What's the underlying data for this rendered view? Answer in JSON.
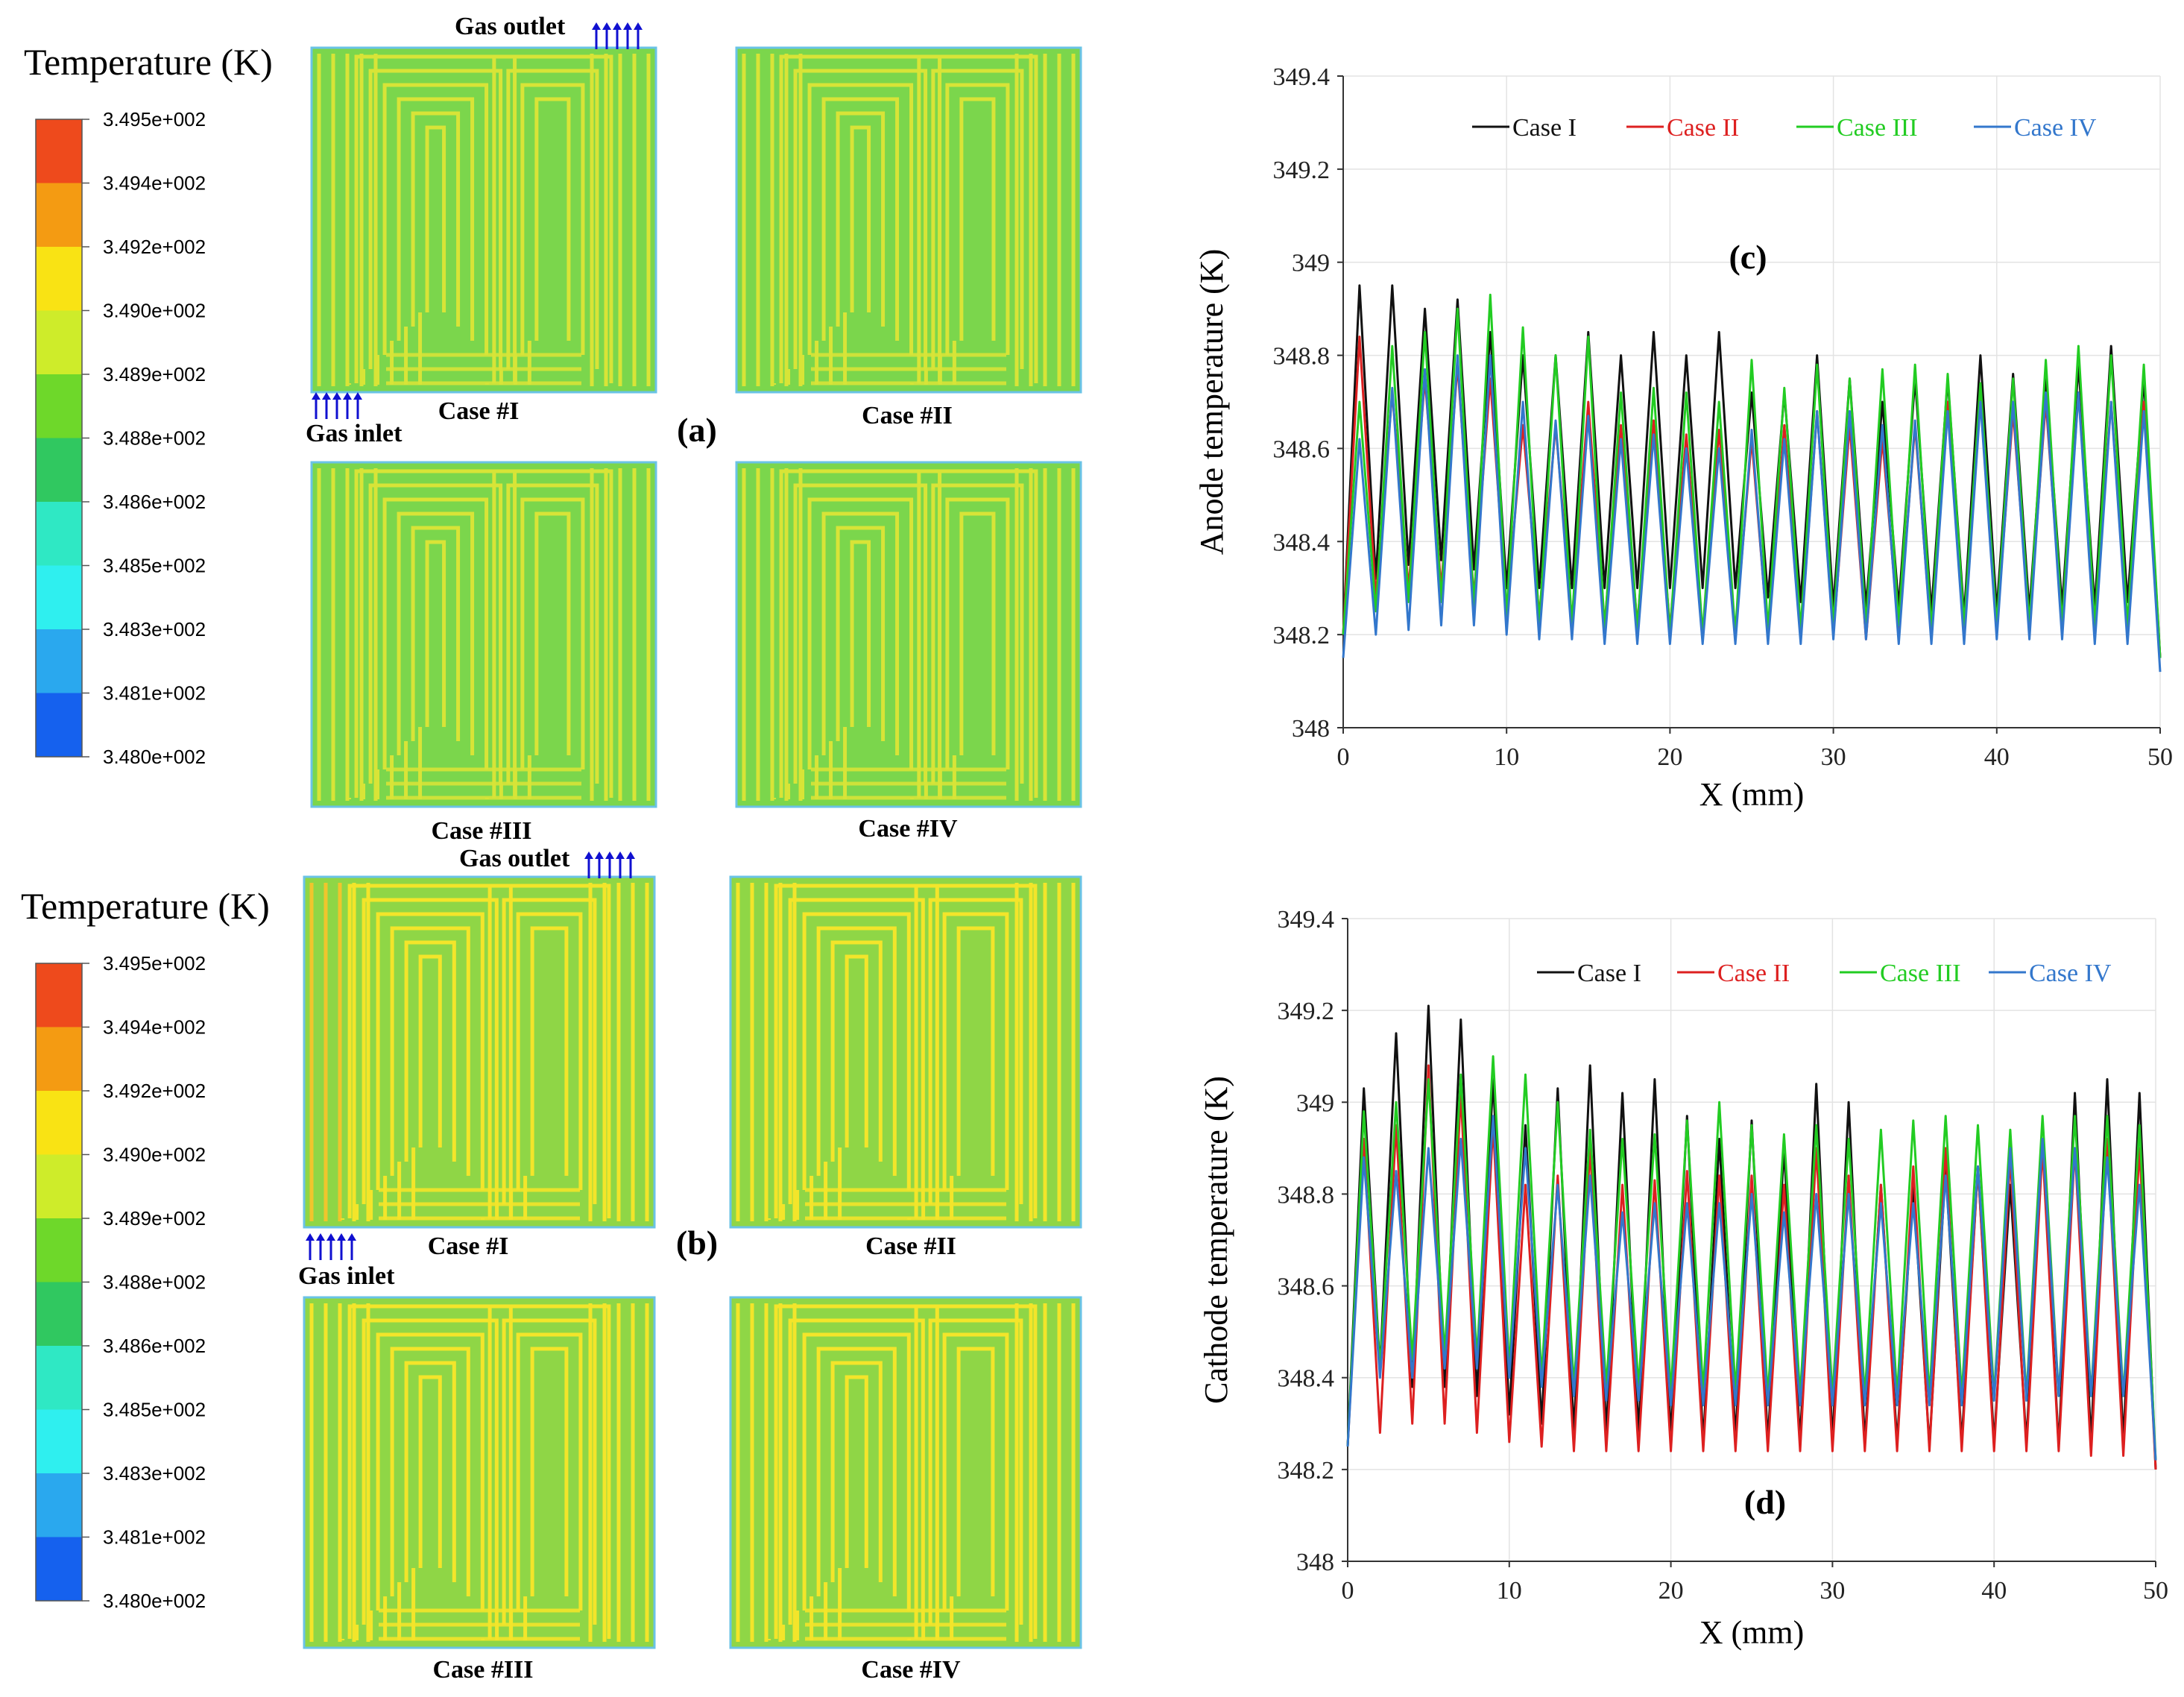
{
  "colorbars": [
    {
      "title": "Temperature (K)",
      "colors": [
        "#ee4a1c",
        "#f49b12",
        "#f9e314",
        "#ceec2a",
        "#6ed82a",
        "#30c860",
        "#2fe8c4",
        "#2fefef",
        "#2aa8ee",
        "#1561ee"
      ],
      "ticks": [
        "3.495e+002",
        "3.494e+002",
        "3.492e+002",
        "3.490e+002",
        "3.489e+002",
        "3.488e+002",
        "3.486e+002",
        "3.485e+002",
        "3.483e+002",
        "3.481e+002",
        "3.480e+002"
      ]
    },
    {
      "title": "Temperature (K)",
      "colors": [
        "#ee4a1c",
        "#f49b12",
        "#f9e314",
        "#ceec2a",
        "#6ed82a",
        "#30c860",
        "#2fe8c4",
        "#2fefef",
        "#2aa8ee",
        "#1561ee"
      ],
      "ticks": [
        "3.495e+002",
        "3.494e+002",
        "3.492e+002",
        "3.490e+002",
        "3.489e+002",
        "3.488e+002",
        "3.486e+002",
        "3.485e+002",
        "3.483e+002",
        "3.481e+002",
        "3.480e+002"
      ]
    }
  ],
  "contour_panels": {
    "a": {
      "label": "(a)",
      "gas_outlet": "Gas outlet",
      "gas_inlet": "Gas inlet",
      "cases": [
        "Case #I",
        "Case #II",
        "Case #III",
        "Case #IV"
      ],
      "background_color": "#7bd64c",
      "channel_color": "#d8e437",
      "inlet_color": "#e2e83a"
    },
    "b": {
      "label": "(b)",
      "gas_outlet": "Gas outlet",
      "gas_inlet": "Gas inlet",
      "cases": [
        "Case #I",
        "Case #II",
        "Case #III",
        "Case #IV"
      ],
      "background_color": "#8fd646",
      "channel_color": "#f3e52a",
      "inlet_color": "#f0c52c"
    },
    "arrow_color": "#1010d0"
  },
  "chart_data": [
    {
      "id": "c",
      "type": "line",
      "label": "(c)",
      "xlabel": "X (mm)",
      "ylabel": "Anode temperature (K)",
      "xlim": [
        0,
        50
      ],
      "ylim": [
        348,
        349.4
      ],
      "xticks": [
        0,
        10,
        20,
        30,
        40,
        50
      ],
      "yticks": [
        348,
        348.2,
        348.4,
        348.6,
        348.8,
        349,
        349.2,
        349.4
      ],
      "legend_position": "top",
      "series": [
        {
          "name": "Case I",
          "color": "#111111",
          "x": [
            0,
            1,
            2,
            3,
            4,
            5,
            6,
            7,
            8,
            9,
            10,
            11,
            12,
            13,
            14,
            15,
            16,
            17,
            18,
            19,
            20,
            21,
            22,
            23,
            24,
            25,
            26,
            27,
            28,
            29,
            30,
            31,
            32,
            33,
            34,
            35,
            36,
            37,
            38,
            39,
            40,
            41,
            42,
            43,
            44,
            45,
            46,
            47,
            48,
            49,
            50
          ],
          "y": [
            348.2,
            348.95,
            348.32,
            348.95,
            348.35,
            348.9,
            348.36,
            348.92,
            348.34,
            348.85,
            348.3,
            348.8,
            348.3,
            348.8,
            348.3,
            348.85,
            348.3,
            348.8,
            348.3,
            348.85,
            348.3,
            348.8,
            348.3,
            348.85,
            348.3,
            348.72,
            348.28,
            348.72,
            348.27,
            348.8,
            348.26,
            348.75,
            348.26,
            348.7,
            348.26,
            348.75,
            348.25,
            348.75,
            348.24,
            348.8,
            348.25,
            348.76,
            348.25,
            348.75,
            348.26,
            348.78,
            348.26,
            348.82,
            348.27,
            348.75,
            348.15
          ]
        },
        {
          "name": "Case II",
          "color": "#dd2020",
          "x": [
            0,
            1,
            2,
            3,
            4,
            5,
            6,
            7,
            8,
            9,
            10,
            11,
            12,
            13,
            14,
            15,
            16,
            17,
            18,
            19,
            20,
            21,
            22,
            23,
            24,
            25,
            26,
            27,
            28,
            29,
            30,
            31,
            32,
            33,
            34,
            35,
            36,
            37,
            38,
            39,
            40,
            41,
            42,
            43,
            44,
            45,
            46,
            47,
            48,
            49,
            50
          ],
          "y": [
            348.2,
            348.84,
            348.28,
            348.72,
            348.3,
            348.75,
            348.3,
            348.78,
            348.28,
            348.75,
            348.25,
            348.65,
            348.24,
            348.65,
            348.23,
            348.7,
            348.22,
            348.65,
            348.22,
            348.66,
            348.21,
            348.63,
            348.2,
            348.64,
            348.2,
            348.62,
            348.19,
            348.65,
            348.19,
            348.68,
            348.2,
            348.65,
            348.19,
            348.62,
            348.2,
            348.65,
            348.19,
            348.7,
            348.2,
            348.73,
            348.21,
            348.68,
            348.22,
            348.7,
            348.22,
            348.72,
            348.22,
            348.7,
            348.21,
            348.7,
            348.15
          ]
        },
        {
          "name": "Case III",
          "color": "#22cc22",
          "x": [
            0,
            1,
            2,
            3,
            4,
            5,
            6,
            7,
            8,
            9,
            10,
            11,
            12,
            13,
            14,
            15,
            16,
            17,
            18,
            19,
            20,
            21,
            22,
            23,
            24,
            25,
            26,
            27,
            28,
            29,
            30,
            31,
            32,
            33,
            34,
            35,
            36,
            37,
            38,
            39,
            40,
            41,
            42,
            43,
            44,
            45,
            46,
            47,
            48,
            49,
            50
          ],
          "y": [
            348.2,
            348.7,
            348.25,
            348.82,
            348.27,
            348.85,
            348.27,
            348.9,
            348.26,
            348.93,
            348.24,
            348.86,
            348.22,
            348.8,
            348.22,
            348.84,
            348.21,
            348.72,
            348.21,
            348.73,
            348.2,
            348.72,
            348.2,
            348.7,
            348.2,
            348.79,
            348.21,
            348.73,
            348.21,
            348.78,
            348.22,
            348.75,
            348.22,
            348.77,
            348.22,
            348.78,
            348.21,
            348.76,
            348.22,
            348.74,
            348.22,
            348.75,
            348.22,
            348.79,
            348.22,
            348.82,
            348.22,
            348.8,
            348.22,
            348.78,
            348.15
          ]
        },
        {
          "name": "Case IV",
          "color": "#3377cc",
          "x": [
            0,
            1,
            2,
            3,
            4,
            5,
            6,
            7,
            8,
            9,
            10,
            11,
            12,
            13,
            14,
            15,
            16,
            17,
            18,
            19,
            20,
            21,
            22,
            23,
            24,
            25,
            26,
            27,
            28,
            29,
            30,
            31,
            32,
            33,
            34,
            35,
            36,
            37,
            38,
            39,
            40,
            41,
            42,
            43,
            44,
            45,
            46,
            47,
            48,
            49,
            50
          ],
          "y": [
            348.15,
            348.62,
            348.2,
            348.73,
            348.21,
            348.77,
            348.22,
            348.8,
            348.22,
            348.8,
            348.2,
            348.7,
            348.19,
            348.66,
            348.19,
            348.67,
            348.18,
            348.62,
            348.18,
            348.63,
            348.18,
            348.6,
            348.18,
            348.6,
            348.18,
            348.64,
            348.18,
            348.62,
            348.18,
            348.68,
            348.19,
            348.68,
            348.19,
            348.65,
            348.18,
            348.66,
            348.18,
            348.68,
            348.18,
            348.7,
            348.19,
            348.7,
            348.19,
            348.72,
            348.19,
            348.72,
            348.18,
            348.7,
            348.18,
            348.68,
            348.12
          ]
        }
      ]
    },
    {
      "id": "d",
      "type": "line",
      "label": "(d)",
      "xlabel": "X (mm)",
      "ylabel": "Cathode temperature (K)",
      "xlim": [
        0,
        50
      ],
      "ylim": [
        348,
        349.4
      ],
      "xticks": [
        0,
        10,
        20,
        30,
        40,
        50
      ],
      "yticks": [
        348,
        348.2,
        348.4,
        348.6,
        348.8,
        349,
        349.2,
        349.4
      ],
      "legend_position": "top",
      "series": [
        {
          "name": "Case I",
          "color": "#111111",
          "x": [
            0,
            1,
            2,
            3,
            4,
            5,
            6,
            7,
            8,
            9,
            10,
            11,
            12,
            13,
            14,
            15,
            16,
            17,
            18,
            19,
            20,
            21,
            22,
            23,
            24,
            25,
            26,
            27,
            28,
            29,
            30,
            31,
            32,
            33,
            34,
            35,
            36,
            37,
            38,
            39,
            40,
            41,
            42,
            43,
            44,
            45,
            46,
            47,
            48,
            49,
            50
          ],
          "y": [
            348.25,
            349.03,
            348.42,
            349.15,
            348.38,
            349.21,
            348.38,
            349.18,
            348.36,
            349.05,
            348.32,
            348.95,
            348.3,
            349.03,
            348.28,
            349.08,
            348.28,
            349.02,
            348.28,
            349.05,
            348.27,
            348.97,
            348.26,
            348.92,
            348.27,
            348.96,
            348.26,
            348.9,
            348.26,
            349.04,
            348.26,
            349.0,
            348.26,
            348.82,
            348.26,
            348.82,
            348.25,
            348.86,
            348.26,
            348.86,
            348.26,
            348.82,
            348.26,
            348.92,
            348.25,
            349.02,
            348.26,
            349.05,
            348.26,
            349.02,
            348.2
          ]
        },
        {
          "name": "Case II",
          "color": "#dd2020",
          "x": [
            0,
            1,
            2,
            3,
            4,
            5,
            6,
            7,
            8,
            9,
            10,
            11,
            12,
            13,
            14,
            15,
            16,
            17,
            18,
            19,
            20,
            21,
            22,
            23,
            24,
            25,
            26,
            27,
            28,
            29,
            30,
            31,
            32,
            33,
            34,
            35,
            36,
            37,
            38,
            39,
            40,
            41,
            42,
            43,
            44,
            45,
            46,
            47,
            48,
            49,
            50
          ],
          "y": [
            348.25,
            348.92,
            348.28,
            348.95,
            348.3,
            349.08,
            348.3,
            349.02,
            348.28,
            348.95,
            348.26,
            348.82,
            348.25,
            348.84,
            348.24,
            348.9,
            348.24,
            348.82,
            348.24,
            348.83,
            348.24,
            348.85,
            348.24,
            348.84,
            348.24,
            348.84,
            348.24,
            348.82,
            348.24,
            348.9,
            348.24,
            348.84,
            348.24,
            348.82,
            348.24,
            348.86,
            348.24,
            348.9,
            348.24,
            348.86,
            348.24,
            348.88,
            348.24,
            348.9,
            348.24,
            348.9,
            348.23,
            348.92,
            348.23,
            348.9,
            348.2
          ]
        },
        {
          "name": "Case III",
          "color": "#22cc22",
          "x": [
            0,
            1,
            2,
            3,
            4,
            5,
            6,
            7,
            8,
            9,
            10,
            11,
            12,
            13,
            14,
            15,
            16,
            17,
            18,
            19,
            20,
            21,
            22,
            23,
            24,
            25,
            26,
            27,
            28,
            29,
            30,
            31,
            32,
            33,
            34,
            35,
            36,
            37,
            38,
            39,
            40,
            41,
            42,
            43,
            44,
            45,
            46,
            47,
            48,
            49,
            50
          ],
          "y": [
            348.25,
            348.98,
            348.42,
            349.0,
            348.44,
            349.05,
            348.45,
            349.06,
            348.44,
            349.1,
            348.42,
            349.06,
            348.4,
            349.0,
            348.38,
            348.94,
            348.38,
            348.92,
            348.38,
            348.93,
            348.37,
            348.96,
            348.37,
            349.0,
            348.37,
            348.95,
            348.36,
            348.93,
            348.36,
            348.95,
            348.36,
            348.92,
            348.36,
            348.94,
            348.36,
            348.96,
            348.36,
            348.97,
            348.36,
            348.95,
            348.36,
            348.94,
            348.36,
            348.97,
            348.36,
            348.97,
            348.36,
            348.97,
            348.36,
            348.95,
            348.22
          ]
        },
        {
          "name": "Case IV",
          "color": "#3377cc",
          "x": [
            0,
            1,
            2,
            3,
            4,
            5,
            6,
            7,
            8,
            9,
            10,
            11,
            12,
            13,
            14,
            15,
            16,
            17,
            18,
            19,
            20,
            21,
            22,
            23,
            24,
            25,
            26,
            27,
            28,
            29,
            30,
            31,
            32,
            33,
            34,
            35,
            36,
            37,
            38,
            39,
            40,
            41,
            42,
            43,
            44,
            45,
            46,
            47,
            48,
            49,
            50
          ],
          "y": [
            348.25,
            348.88,
            348.4,
            348.85,
            348.4,
            348.9,
            348.42,
            348.92,
            348.42,
            348.97,
            348.4,
            348.9,
            348.38,
            348.82,
            348.36,
            348.84,
            348.35,
            348.76,
            348.35,
            348.78,
            348.34,
            348.78,
            348.34,
            348.78,
            348.34,
            348.8,
            348.34,
            348.76,
            348.34,
            348.8,
            348.34,
            348.8,
            348.34,
            348.78,
            348.34,
            348.78,
            348.34,
            348.84,
            348.34,
            348.86,
            348.35,
            348.9,
            348.35,
            348.92,
            348.36,
            348.9,
            348.36,
            348.88,
            348.36,
            348.82,
            348.22
          ]
        }
      ]
    }
  ]
}
